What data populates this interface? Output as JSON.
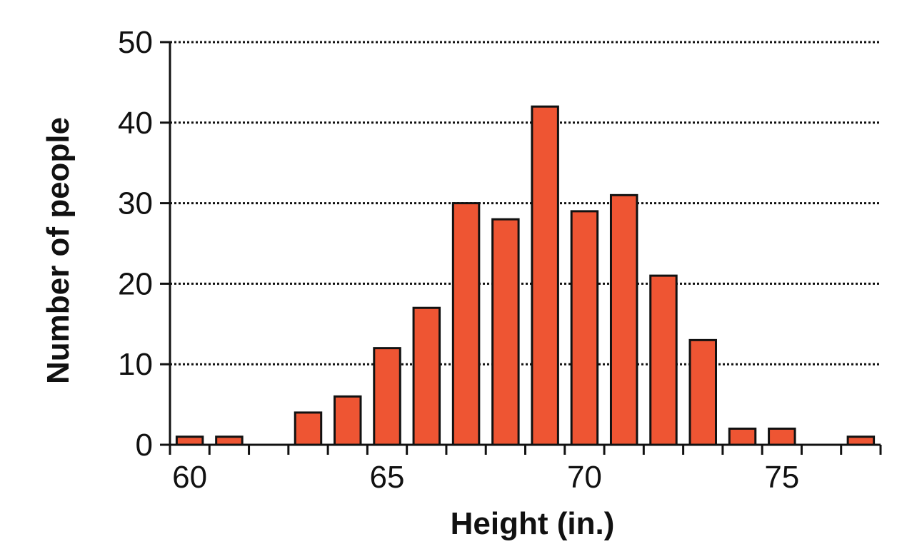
{
  "chart_data": {
    "type": "bar",
    "title": "",
    "xlabel": "Height (in.)",
    "ylabel": "Number of people",
    "x": [
      60,
      61,
      62,
      63,
      64,
      65,
      66,
      67,
      68,
      69,
      70,
      71,
      72,
      73,
      74,
      75,
      76,
      77
    ],
    "values": [
      1,
      1,
      0,
      4,
      6,
      12,
      17,
      30,
      28,
      42,
      29,
      31,
      21,
      13,
      2,
      2,
      0,
      1
    ],
    "xlim": [
      60,
      78
    ],
    "ylim": [
      0,
      50
    ],
    "x_ticks": [
      60,
      65,
      70,
      75
    ],
    "y_ticks": [
      0,
      10,
      20,
      30,
      40,
      50
    ],
    "grid": "horizontal dotted",
    "bar_color": "#EE5533",
    "edge_color": "#111111"
  }
}
